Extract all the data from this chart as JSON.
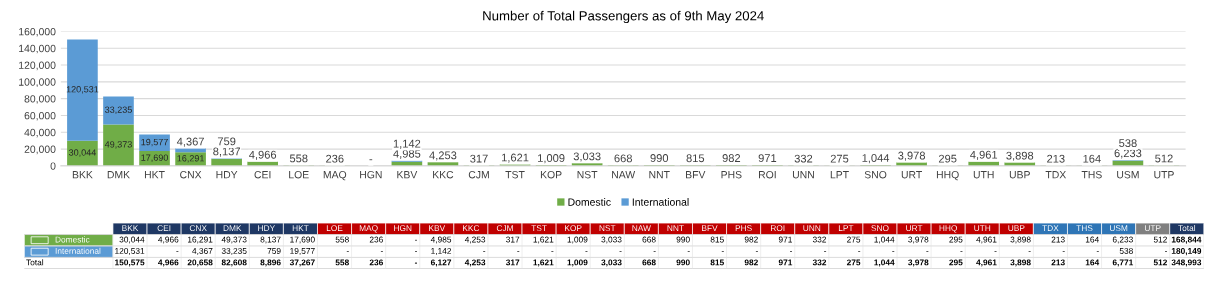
{
  "chart_data": [
    {
      "type": "bar",
      "title": "Number of Total Passengers as of 9th May 2024",
      "stacked": true,
      "categories": [
        "BKK",
        "DMK",
        "HKT",
        "CNX",
        "HDY",
        "CEI",
        "LOE",
        "MAQ",
        "HGN",
        "KBV",
        "KKC",
        "CJM",
        "TST",
        "KOP",
        "NST",
        "NAW",
        "NNT",
        "BFV",
        "PHS",
        "ROI",
        "UNN",
        "LPT",
        "SNO",
        "URT",
        "HHQ",
        "UTH",
        "UBP",
        "TDX",
        "THS",
        "USM",
        "UTP"
      ],
      "series": [
        {
          "name": "Domestic",
          "color": "#70ad47",
          "values": [
            30044,
            49373,
            17690,
            16291,
            8137,
            4966,
            558,
            236,
            null,
            4985,
            4253,
            317,
            1621,
            1009,
            3033,
            668,
            990,
            815,
            982,
            971,
            332,
            275,
            1044,
            3978,
            295,
            4961,
            3898,
            213,
            164,
            6233,
            512
          ],
          "value_labels": [
            "30,044",
            "49,373",
            "17,690",
            "16,291",
            "8,137",
            "4,966",
            "558",
            "236",
            "-",
            "4,985",
            "4,253",
            "317",
            "1,621",
            "1,009",
            "3,033",
            "668",
            "990",
            "815",
            "982",
            "971",
            "332",
            "275",
            "1,044",
            "3,978",
            "295",
            "4,961",
            "3,898",
            "213",
            "164",
            "6,233",
            "512"
          ]
        },
        {
          "name": "International",
          "color": "#5b9bd5",
          "values": [
            120531,
            33235,
            19577,
            4367,
            759,
            null,
            null,
            null,
            null,
            1142,
            null,
            null,
            null,
            null,
            null,
            null,
            null,
            null,
            null,
            null,
            null,
            null,
            null,
            null,
            null,
            null,
            null,
            null,
            null,
            538,
            null
          ],
          "value_labels": [
            "120,531",
            "33,235",
            "19,577",
            "4,367",
            "759",
            null,
            null,
            null,
            null,
            "1,142",
            null,
            null,
            null,
            null,
            null,
            null,
            null,
            null,
            null,
            null,
            null,
            null,
            null,
            null,
            null,
            null,
            null,
            null,
            null,
            "538",
            null
          ]
        }
      ],
      "ylim": [
        0,
        160000
      ],
      "yticks": [
        0,
        {
          "value": 20000,
          "label": "20,000"
        },
        {
          "value": 40000,
          "label": "40,000"
        },
        {
          "value": 60000,
          "label": "60,000"
        },
        {
          "value": 80000,
          "label": "80,000"
        },
        {
          "value": 100000,
          "label": "100,000"
        },
        {
          "value": 120000,
          "label": "120,000"
        },
        {
          "value": 140000,
          "label": "140,000"
        },
        {
          "value": 160000,
          "label": "160,000"
        }
      ],
      "grid": "y",
      "legend": "bottom"
    },
    {
      "type": "other",
      "categories": [
        "BKK",
        "CEI",
        "CNX",
        "DMK",
        "HDY",
        "HKT",
        "LOE",
        "MAQ",
        "HGN",
        "KBV",
        "KKC",
        "CJM",
        "TST",
        "KOP",
        "NST",
        "NAW",
        "NNT",
        "BFV",
        "PHS",
        "ROI",
        "UNN",
        "LPT",
        "SNO",
        "URT",
        "HHQ",
        "UTH",
        "UBP",
        "TDX",
        "THS",
        "USM",
        "UTP",
        "Total"
      ],
      "colors": [
        "#1f3864",
        "#1f3864",
        "#1f3864",
        "#1f3864",
        "#1f3864",
        "#1f3864",
        "#c00000",
        "#c00000",
        "#c00000",
        "#c00000",
        "#c00000",
        "#c00000",
        "#c00000",
        "#c00000",
        "#c00000",
        "#c00000",
        "#c00000",
        "#c00000",
        "#c00000",
        "#c00000",
        "#c00000",
        "#c00000",
        "#c00000",
        "#c00000",
        "#c00000",
        "#c00000",
        "#c00000",
        "#2e75b6",
        "#2e75b6",
        "#2e75b6",
        "#808080",
        "#1f3864"
      ],
      "series": [
        {
          "name": "Domestic",
          "color": "#70ad47",
          "values": [
            30044,
            4966,
            16291,
            49373,
            8137,
            17690,
            558,
            236,
            null,
            4985,
            4253,
            317,
            1621,
            1009,
            3033,
            668,
            990,
            815,
            982,
            971,
            332,
            275,
            1044,
            3978,
            295,
            4961,
            3898,
            213,
            164,
            6233,
            512,
            168844
          ],
          "value_labels": [
            "30,044",
            "4,966",
            "16,291",
            "49,373",
            "8,137",
            "17,690",
            "558",
            "236",
            "-",
            "4,985",
            "4,253",
            "317",
            "1,621",
            "1,009",
            "3,033",
            "668",
            "990",
            "815",
            "982",
            "971",
            "332",
            "275",
            "1,044",
            "3,978",
            "295",
            "4,961",
            "3,898",
            "213",
            "164",
            "6,233",
            "512",
            "168,844"
          ]
        },
        {
          "name": "International",
          "color": "#5b9bd5",
          "values": [
            120531,
            null,
            4367,
            33235,
            759,
            19577,
            null,
            null,
            null,
            1142,
            null,
            null,
            null,
            null,
            null,
            null,
            null,
            null,
            null,
            null,
            null,
            null,
            null,
            null,
            null,
            null,
            null,
            null,
            null,
            538,
            null,
            180149
          ],
          "value_labels": [
            "120,531",
            "-",
            "4,367",
            "33,235",
            "759",
            "19,577",
            "-",
            "-",
            "-",
            "1,142",
            "-",
            "-",
            "-",
            "-",
            "-",
            "-",
            "-",
            "-",
            "-",
            "-",
            "-",
            "-",
            "-",
            "-",
            "-",
            "-",
            "-",
            "-",
            "-",
            "538",
            "-",
            "180,149"
          ]
        }
      ],
      "totals": [
        "150,575",
        "4,966",
        "20,658",
        "82,608",
        "8,896",
        "37,267",
        "558",
        "236",
        "-",
        "6,127",
        "4,253",
        "317",
        "1,621",
        "1,009",
        "3,033",
        "668",
        "990",
        "815",
        "982",
        "971",
        "332",
        "275",
        "1,044",
        "3,978",
        "295",
        "4,961",
        "3,898",
        "213",
        "164",
        "6,771",
        "512",
        "348,993"
      ],
      "annotations": [
        "Total"
      ]
    }
  ]
}
